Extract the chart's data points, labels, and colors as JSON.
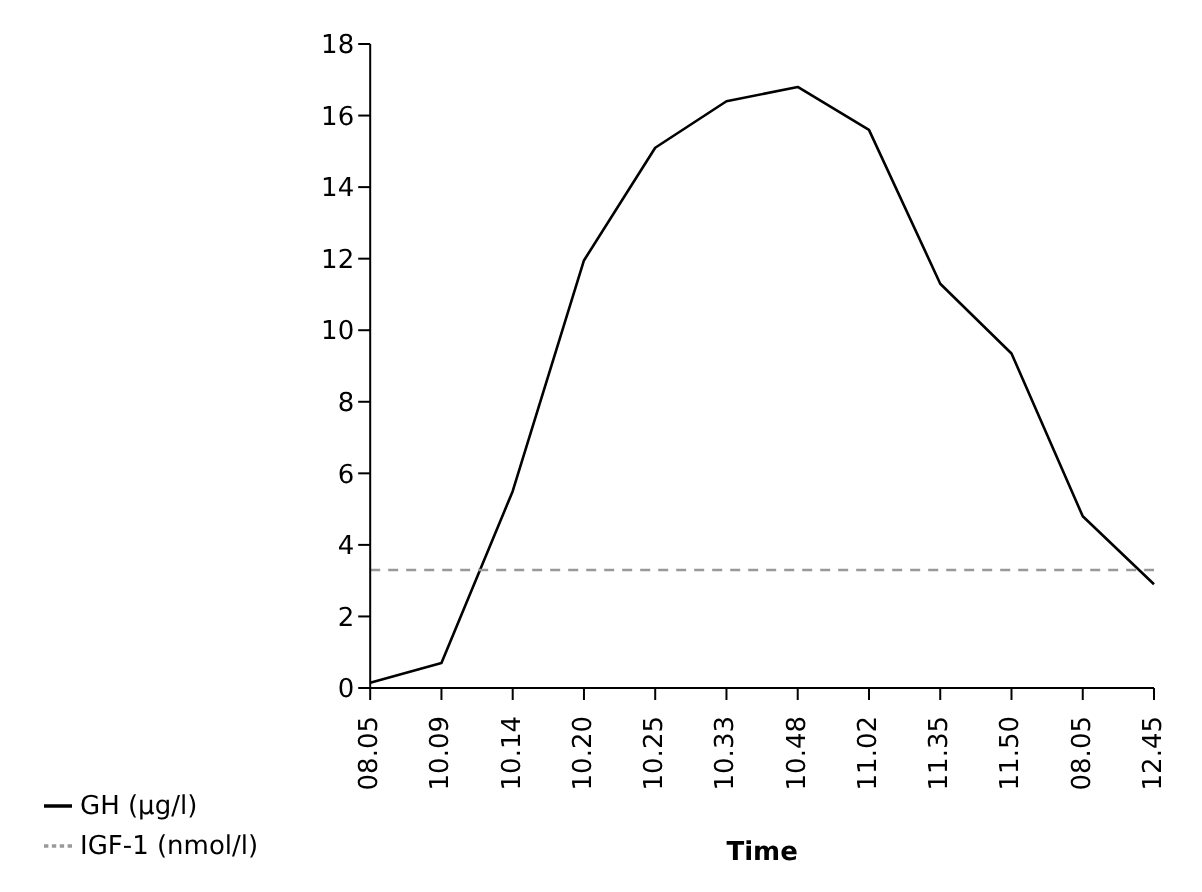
{
  "chart_data": {
    "type": "line",
    "xlabel": "Time",
    "categories": [
      "08.05",
      "10.09",
      "10.14",
      "10.20",
      "10.25",
      "10.33",
      "10.48",
      "11.02",
      "11.35",
      "11.50",
      "08.05",
      "12.45"
    ],
    "series": [
      {
        "name": "GH (µg/l)",
        "color": "#000000",
        "line_style": "solid",
        "values": [
          0.15,
          0.7,
          5.5,
          11.95,
          15.1,
          16.4,
          16.8,
          15.6,
          11.3,
          9.35,
          4.8,
          2.9
        ]
      },
      {
        "name": "IGF-1 (nmol/l)",
        "color": "#999999",
        "line_style": "dashed",
        "values": [
          3.3,
          3.3,
          3.3,
          3.3,
          3.3,
          3.3,
          3.3,
          3.3,
          3.3,
          3.3,
          3.3,
          3.3
        ]
      }
    ],
    "ylim": [
      0,
      18
    ],
    "yticks": [
      0,
      2,
      4,
      6,
      8,
      10,
      12,
      14,
      16,
      18
    ],
    "grid": false,
    "legend": "bottom left",
    "marker": "none"
  }
}
